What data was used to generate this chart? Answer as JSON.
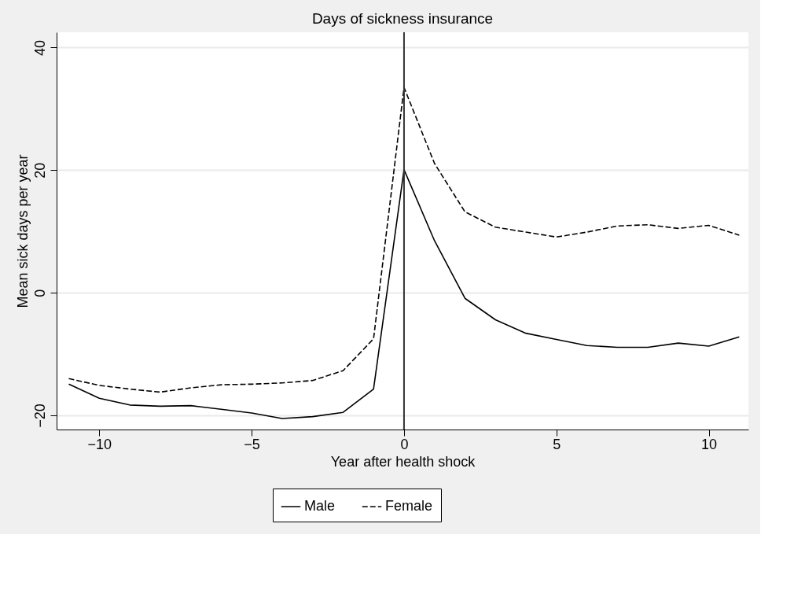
{
  "chart_data": {
    "type": "line",
    "title": "Days of sickness insurance",
    "xlabel": "Year after health shock",
    "ylabel": "Mean sick days per year",
    "x": [
      -11,
      -10,
      -9,
      -8,
      -7,
      -6,
      -5,
      -4,
      -3,
      -2,
      -1,
      0,
      1,
      2,
      3,
      4,
      5,
      6,
      7,
      8,
      9,
      10,
      11
    ],
    "series": [
      {
        "name": "Male",
        "color": "#000000",
        "line_style": "solid",
        "values": [
          -14.9,
          -17.2,
          -18.3,
          -18.5,
          -18.4,
          -19.0,
          -19.6,
          -20.5,
          -20.2,
          -19.5,
          -15.7,
          20.1,
          8.5,
          -0.9,
          -4.4,
          -6.6,
          -7.6,
          -8.6,
          -8.9,
          -8.9,
          -8.2,
          -8.7,
          -7.2
        ]
      },
      {
        "name": "Female",
        "color": "#000000",
        "line_style": "dashed",
        "values": [
          -14.0,
          -15.1,
          -15.7,
          -16.2,
          -15.5,
          -15.0,
          -14.9,
          -14.7,
          -14.3,
          -12.7,
          -7.5,
          33.5,
          21.1,
          13.2,
          10.7,
          9.9,
          9.1,
          9.9,
          10.9,
          11.1,
          10.5,
          11.0,
          9.4
        ]
      }
    ],
    "xlim": [
      -11.4,
      11.3
    ],
    "ylim": [
      -22.3,
      42.5
    ],
    "xticks": [
      {
        "value": -10,
        "label": "−10"
      },
      {
        "value": -5,
        "label": "−5"
      },
      0,
      5,
      10
    ],
    "yticks": [
      {
        "value": -20,
        "label": "−20"
      },
      0,
      20,
      40
    ],
    "ref_lines": [
      {
        "axis": "x",
        "value": 0,
        "color": "#333333"
      }
    ],
    "grid": "y",
    "legend": "bottom",
    "marker": "none"
  }
}
